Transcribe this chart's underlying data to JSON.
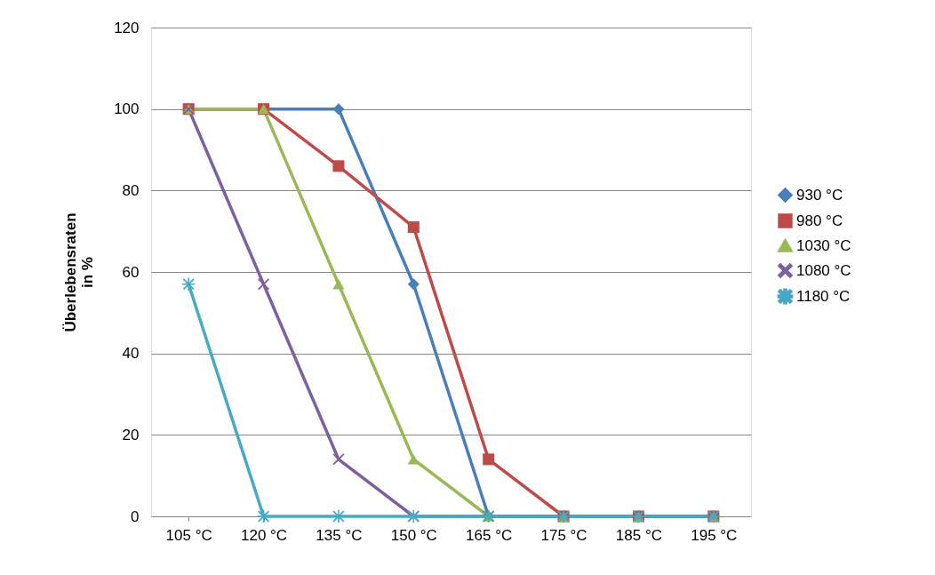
{
  "chart_data": {
    "type": "line",
    "ylabel": "Überlebensraten in %",
    "categories": [
      "105 °C",
      "120 °C",
      "135 °C",
      "150 °C",
      "165 °C",
      "175 °C",
      "185 °C",
      "195 °C"
    ],
    "series": [
      {
        "name": "930 °C",
        "color": "#4a7ebb",
        "marker": "diamond",
        "values": [
          100,
          100,
          100,
          57,
          0,
          0,
          0,
          0
        ]
      },
      {
        "name": "980 °C",
        "color": "#be4b48",
        "marker": "square",
        "values": [
          100,
          100,
          86,
          71,
          14,
          0,
          0,
          0
        ]
      },
      {
        "name": "1030 °C",
        "color": "#98b954",
        "marker": "triangle",
        "values": [
          100,
          100,
          57,
          14,
          0,
          0,
          0,
          0
        ]
      },
      {
        "name": "1080 °C",
        "color": "#7d60a0",
        "marker": "cross",
        "values": [
          100,
          57,
          14,
          0,
          0,
          0,
          0,
          0
        ]
      },
      {
        "name": "1180 °C",
        "color": "#46aac5",
        "marker": "star",
        "values": [
          57,
          0,
          0,
          0,
          0,
          0,
          0,
          0
        ]
      }
    ],
    "ylim": [
      0,
      120
    ],
    "yticks": [
      0,
      20,
      40,
      60,
      80,
      100,
      120
    ],
    "grid": "y",
    "legend": "right",
    "line_style": "solid"
  }
}
